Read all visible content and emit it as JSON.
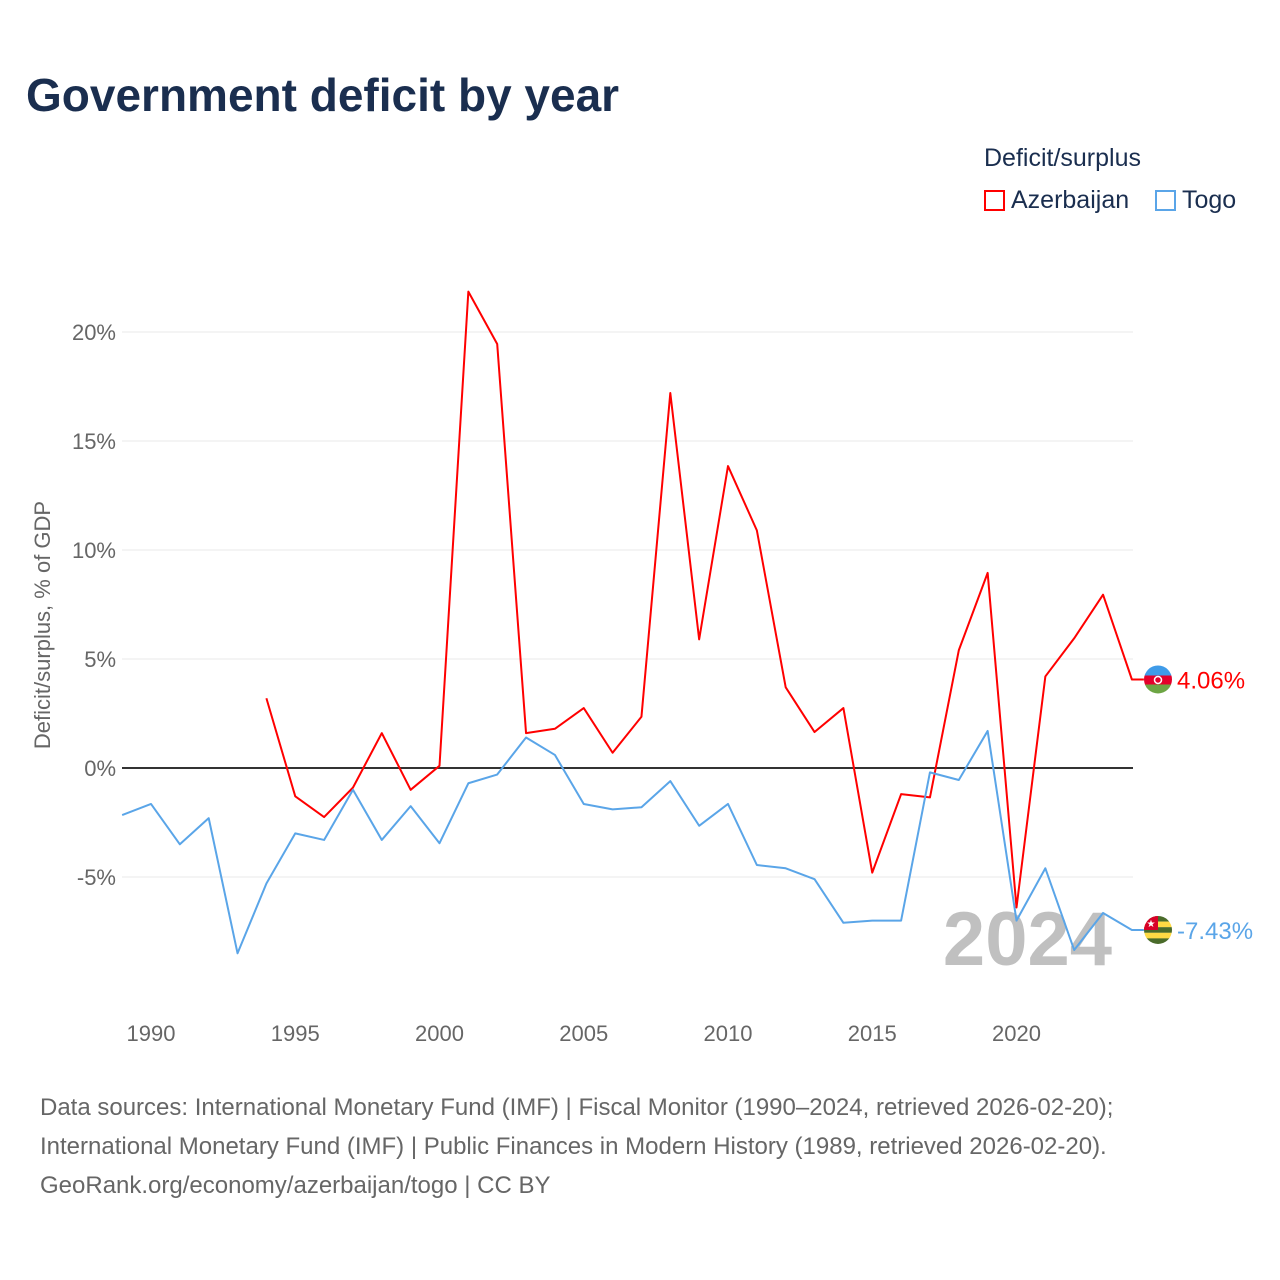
{
  "title": "Government deficit by year",
  "legend": {
    "title": "Deficit/surplus",
    "items": [
      {
        "name": "Azerbaijan",
        "color": "#ff0000"
      },
      {
        "name": "Togo",
        "color": "#5aa5e8"
      }
    ]
  },
  "source": [
    "Data sources: International Monetary Fund (IMF) | Fiscal Monitor (1990–2024, retrieved 2026-02-20);",
    "International Monetary Fund (IMF) | Public Finances in Modern History (1989, retrieved 2026-02-20).",
    "GeoRank.org/economy/azerbaijan/togo | CC BY"
  ],
  "chart_data": {
    "type": "line",
    "title": "Government deficit by year",
    "xlabel": "",
    "ylabel": "Deficit/surplus, % of GDP",
    "xlim": [
      1989,
      2024
    ],
    "ylim": [
      -10,
      22
    ],
    "y_ticks": [
      -5,
      0,
      5,
      10,
      15,
      20
    ],
    "y_tick_labels": [
      "-5%",
      "0%",
      "5%",
      "10%",
      "15%",
      "20%"
    ],
    "x_ticks": [
      1990,
      1995,
      2000,
      2005,
      2010,
      2015,
      2020
    ],
    "x_tick_labels": [
      "1990",
      "1995",
      "2000",
      "2005",
      "2010",
      "2015",
      "2020"
    ],
    "year_watermark": "2024",
    "legend_position": "top-right",
    "series": [
      {
        "name": "Azerbaijan",
        "color": "#ff0000",
        "end_label": "4.06%",
        "x": [
          1994,
          1995,
          1996,
          1997,
          1998,
          1999,
          2000,
          2001,
          2002,
          2003,
          2004,
          2005,
          2006,
          2007,
          2008,
          2009,
          2010,
          2011,
          2012,
          2013,
          2014,
          2015,
          2016,
          2017,
          2018,
          2019,
          2020,
          2021,
          2022,
          2023,
          2024
        ],
        "values": [
          3.2,
          -1.3,
          -2.25,
          -0.9,
          1.6,
          -1.0,
          0.1,
          21.85,
          19.45,
          1.6,
          1.8,
          2.75,
          0.7,
          2.35,
          17.2,
          5.9,
          13.85,
          10.9,
          3.7,
          1.65,
          2.75,
          -4.8,
          -1.2,
          -1.35,
          5.4,
          8.95,
          -6.4,
          4.2,
          5.95,
          7.95,
          4.06
        ]
      },
      {
        "name": "Togo",
        "color": "#5aa5e8",
        "end_label": "-7.43%",
        "x": [
          1989,
          1990,
          1991,
          1992,
          1993,
          1994,
          1995,
          1996,
          1997,
          1998,
          1999,
          2000,
          2001,
          2002,
          2003,
          2004,
          2005,
          2006,
          2007,
          2008,
          2009,
          2010,
          2011,
          2012,
          2013,
          2014,
          2015,
          2016,
          2017,
          2018,
          2019,
          2020,
          2021,
          2022,
          2023,
          2024
        ],
        "values": [
          -2.16,
          -1.65,
          -3.5,
          -2.3,
          -8.5,
          -5.3,
          -3.0,
          -3.3,
          -1.0,
          -3.3,
          -1.75,
          -3.45,
          -0.7,
          -0.3,
          1.4,
          0.6,
          -1.65,
          -1.9,
          -1.8,
          -0.6,
          -2.65,
          -1.65,
          -4.45,
          -4.6,
          -5.1,
          -7.1,
          -7.0,
          -7.0,
          -0.2,
          -0.55,
          1.7,
          -7.0,
          -4.6,
          -8.35,
          -6.65,
          -7.43
        ]
      }
    ]
  }
}
